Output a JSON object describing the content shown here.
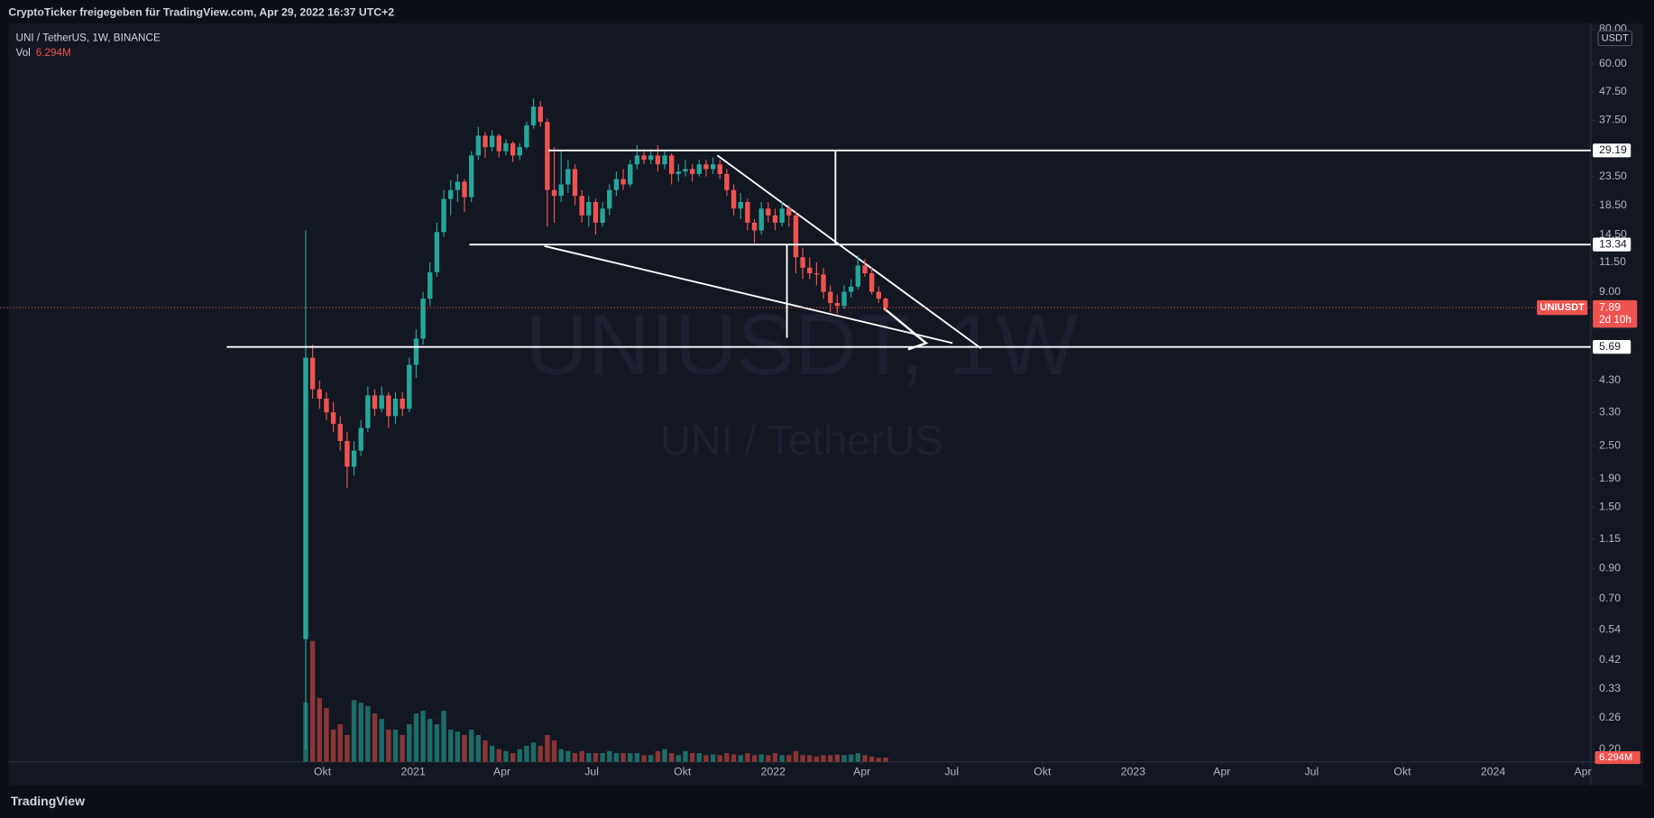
{
  "header": {
    "text": "CryptoTicker freigegeben für TradingView.com, Apr 29, 2022 16:37 UTC+2"
  },
  "chart_data": {
    "type": "candlestick",
    "title": "UNI / TetherUS, 1W, BINANCE",
    "volume_title": "Vol",
    "last_volume_label": "6.294M",
    "y_unit": "USDT",
    "watermark": [
      "UNIUSDT, 1W",
      "UNI / TetherUS"
    ],
    "log_scale": true,
    "grid": false,
    "up_color": "#26a69a",
    "down_color": "#ef5350",
    "volume_up_color": "#1d6b66",
    "volume_down_color": "#8a3535",
    "xlim": [
      "2019-11-09",
      "2024-04-09"
    ],
    "xticks": [
      {
        "value": "2020-10-01",
        "label": "Okt"
      },
      {
        "value": "2021-01-01",
        "label": "2021"
      },
      {
        "value": "2021-04-01",
        "label": "Apr"
      },
      {
        "value": "2021-07-01",
        "label": "Jul"
      },
      {
        "value": "2021-10-01",
        "label": "Okt"
      },
      {
        "value": "2022-01-01",
        "label": "2022"
      },
      {
        "value": "2022-04-01",
        "label": "Apr"
      },
      {
        "value": "2022-07-01",
        "label": "Jul"
      },
      {
        "value": "2022-10-01",
        "label": "Okt"
      },
      {
        "value": "2023-01-01",
        "label": "2023"
      },
      {
        "value": "2023-04-01",
        "label": "Apr"
      },
      {
        "value": "2023-07-01",
        "label": "Jul"
      },
      {
        "value": "2023-10-01",
        "label": "Okt"
      },
      {
        "value": "2024-01-01",
        "label": "2024"
      },
      {
        "value": "2024-04-01",
        "label": "Apr"
      }
    ],
    "ylim": [
      0.18,
      84
    ],
    "yticks": [
      {
        "value": 80,
        "label": "80.00"
      },
      {
        "value": 60,
        "label": "60.00"
      },
      {
        "value": 47.5,
        "label": "47.50"
      },
      {
        "value": 37.5,
        "label": "37.50"
      },
      {
        "value": 23.5,
        "label": "23.50"
      },
      {
        "value": 18.5,
        "label": "18.50"
      },
      {
        "value": 14.5,
        "label": "14.50"
      },
      {
        "value": 11.5,
        "label": "11.50"
      },
      {
        "value": 9,
        "label": "9.00"
      },
      {
        "value": 4.3,
        "label": "4.30"
      },
      {
        "value": 3.3,
        "label": "3.30"
      },
      {
        "value": 2.5,
        "label": "2.50"
      },
      {
        "value": 1.9,
        "label": "1.90"
      },
      {
        "value": 1.5,
        "label": "1.50"
      },
      {
        "value": 1.15,
        "label": "1.15"
      },
      {
        "value": 0.9,
        "label": "0.90"
      },
      {
        "value": 0.7,
        "label": "0.70"
      },
      {
        "value": 0.54,
        "label": "0.54"
      },
      {
        "value": 0.42,
        "label": "0.42"
      },
      {
        "value": 0.33,
        "label": "0.33"
      },
      {
        "value": 0.26,
        "label": "0.26"
      },
      {
        "value": 0.2,
        "label": "0.20"
      }
    ],
    "levels": [
      29.19,
      13.34,
      5.69
    ],
    "last_price": 7.89,
    "symbol": "UNIUSDT",
    "countdown": "2d 10h",
    "volume_lim": [
      0,
      1100
    ],
    "x": [
      "2020-09-14",
      "2020-09-21",
      "2020-09-28",
      "2020-10-05",
      "2020-10-12",
      "2020-10-19",
      "2020-10-26",
      "2020-11-02",
      "2020-11-09",
      "2020-11-16",
      "2020-11-23",
      "2020-11-30",
      "2020-12-07",
      "2020-12-14",
      "2020-12-21",
      "2020-12-28",
      "2021-01-04",
      "2021-01-11",
      "2021-01-18",
      "2021-01-25",
      "2021-02-01",
      "2021-02-08",
      "2021-02-15",
      "2021-02-22",
      "2021-03-01",
      "2021-03-08",
      "2021-03-15",
      "2021-03-22",
      "2021-03-29",
      "2021-04-05",
      "2021-04-12",
      "2021-04-19",
      "2021-04-26",
      "2021-05-03",
      "2021-05-10",
      "2021-05-17",
      "2021-05-24",
      "2021-05-31",
      "2021-06-07",
      "2021-06-14",
      "2021-06-21",
      "2021-06-28",
      "2021-07-05",
      "2021-07-12",
      "2021-07-19",
      "2021-07-26",
      "2021-08-02",
      "2021-08-09",
      "2021-08-16",
      "2021-08-23",
      "2021-08-30",
      "2021-09-06",
      "2021-09-13",
      "2021-09-20",
      "2021-09-27",
      "2021-10-04",
      "2021-10-11",
      "2021-10-18",
      "2021-10-25",
      "2021-11-01",
      "2021-11-08",
      "2021-11-15",
      "2021-11-22",
      "2021-11-29",
      "2021-12-06",
      "2021-12-13",
      "2021-12-20",
      "2021-12-27",
      "2022-01-03",
      "2022-01-10",
      "2022-01-17",
      "2022-01-24",
      "2022-01-31",
      "2022-02-07",
      "2022-02-14",
      "2022-02-21",
      "2022-02-28",
      "2022-03-07",
      "2022-03-14",
      "2022-03-21",
      "2022-03-28",
      "2022-04-04",
      "2022-04-11",
      "2022-04-18",
      "2022-04-25"
    ],
    "open": [
      0.5,
      5.2,
      4.0,
      3.7,
      3.3,
      3.0,
      2.6,
      2.1,
      2.4,
      2.9,
      3.8,
      3.4,
      3.8,
      3.2,
      3.7,
      3.4,
      4.9,
      6.1,
      8.5,
      10.6,
      14.8,
      19.5,
      21.0,
      22.5,
      19.8,
      28,
      33,
      30,
      33,
      29,
      31,
      28,
      30,
      36,
      42,
      37,
      21,
      20,
      22,
      25,
      20,
      17,
      19,
      16,
      18,
      21,
      23,
      22,
      26,
      28,
      27,
      28,
      26,
      28,
      24,
      24.5,
      25,
      24,
      26,
      25,
      26,
      24,
      21,
      18,
      19,
      16,
      15,
      18,
      17,
      16,
      18,
      17,
      12,
      11,
      10.5,
      10.4,
      9,
      8.2,
      8.0,
      9,
      9.4,
      11.2,
      10.5,
      9,
      8.5
    ],
    "high": [
      15,
      5.8,
      4.3,
      3.9,
      3.6,
      3.2,
      2.8,
      2.6,
      3.1,
      4.1,
      4.0,
      4.1,
      3.9,
      3.9,
      3.9,
      5.2,
      6.6,
      9.0,
      11.5,
      16.0,
      21.0,
      22.8,
      24.0,
      23.0,
      29,
      35.5,
      34,
      34.5,
      33.5,
      32,
      31.5,
      31,
      37,
      45,
      44,
      38,
      30,
      29,
      27,
      26,
      21,
      20,
      19.5,
      19,
      22,
      24.5,
      25,
      27,
      30.5,
      29.5,
      29.5,
      30.5,
      29,
      28.5,
      26,
      27,
      26,
      27,
      27,
      27.5,
      27,
      25,
      22,
      20.5,
      19.5,
      16.5,
      19,
      19,
      18,
      19,
      18.5,
      17.5,
      13,
      12,
      11.5,
      11,
      9.5,
      8.8,
      9.5,
      10,
      12.2,
      11.8,
      11,
      9.4,
      8.6
    ],
    "low": [
      0.2,
      3.7,
      3.4,
      3.1,
      2.8,
      2.4,
      1.76,
      1.95,
      2.3,
      2.8,
      3.2,
      3.3,
      2.9,
      3.0,
      3.2,
      3.3,
      4.4,
      5.8,
      8.0,
      10.2,
      14.2,
      17.0,
      19.0,
      17.5,
      19,
      27,
      27.5,
      29,
      27.5,
      28,
      26.5,
      27,
      29.5,
      35,
      35.5,
      15.5,
      16,
      19,
      20.5,
      18.5,
      16,
      15.5,
      14.5,
      15.5,
      17,
      20,
      21,
      21.5,
      25,
      26,
      26,
      24.5,
      25,
      22,
      22.5,
      23.5,
      22.5,
      23.5,
      23.5,
      24,
      23,
      20,
      17,
      16.5,
      15,
      13.5,
      14.5,
      16,
      15,
      15.5,
      15.5,
      10.5,
      10,
      10,
      9.5,
      8.5,
      7.6,
      7.5,
      7.8,
      8.6,
      9.2,
      10.2,
      8.8,
      8.2,
      7.6
    ],
    "close": [
      5.2,
      4.0,
      3.7,
      3.3,
      3.0,
      2.6,
      2.1,
      2.4,
      2.9,
      3.8,
      3.4,
      3.8,
      3.2,
      3.7,
      3.4,
      4.9,
      6.1,
      8.5,
      10.6,
      14.8,
      19.5,
      21.0,
      22.5,
      19.8,
      28,
      33,
      30,
      33,
      29,
      31,
      28,
      30,
      36,
      42,
      37,
      21,
      20,
      22,
      25,
      20,
      17,
      19,
      16,
      18,
      21,
      23,
      22,
      26,
      28,
      27,
      28,
      26,
      28,
      24,
      24.5,
      25,
      24,
      26,
      25,
      26,
      24,
      21,
      18,
      19,
      16,
      15,
      18,
      17,
      16,
      18,
      17,
      12,
      11,
      10.5,
      10.4,
      9,
      8.2,
      8.0,
      9,
      9.4,
      11.2,
      10.5,
      9,
      8.5,
      7.89
    ],
    "volume": [
      88,
      180,
      95,
      80,
      48,
      56,
      40,
      92,
      88,
      83,
      72,
      64,
      48,
      48,
      40,
      56,
      72,
      76,
      64,
      56,
      76,
      48,
      45,
      40,
      48,
      40,
      32,
      24,
      19,
      16,
      13,
      19,
      24,
      29,
      24,
      40,
      32,
      19,
      16,
      13,
      16,
      13,
      13,
      13,
      16,
      13,
      13,
      13,
      13,
      10,
      10,
      16,
      19,
      13,
      10,
      16,
      13,
      13,
      10,
      11,
      10,
      13,
      11,
      10,
      13,
      10,
      11,
      10,
      13,
      10,
      10,
      16,
      10,
      10,
      8,
      10,
      10,
      11,
      10,
      11,
      13,
      10,
      8,
      6,
      6.294
    ]
  },
  "footer": {
    "brand": "TradingView"
  }
}
